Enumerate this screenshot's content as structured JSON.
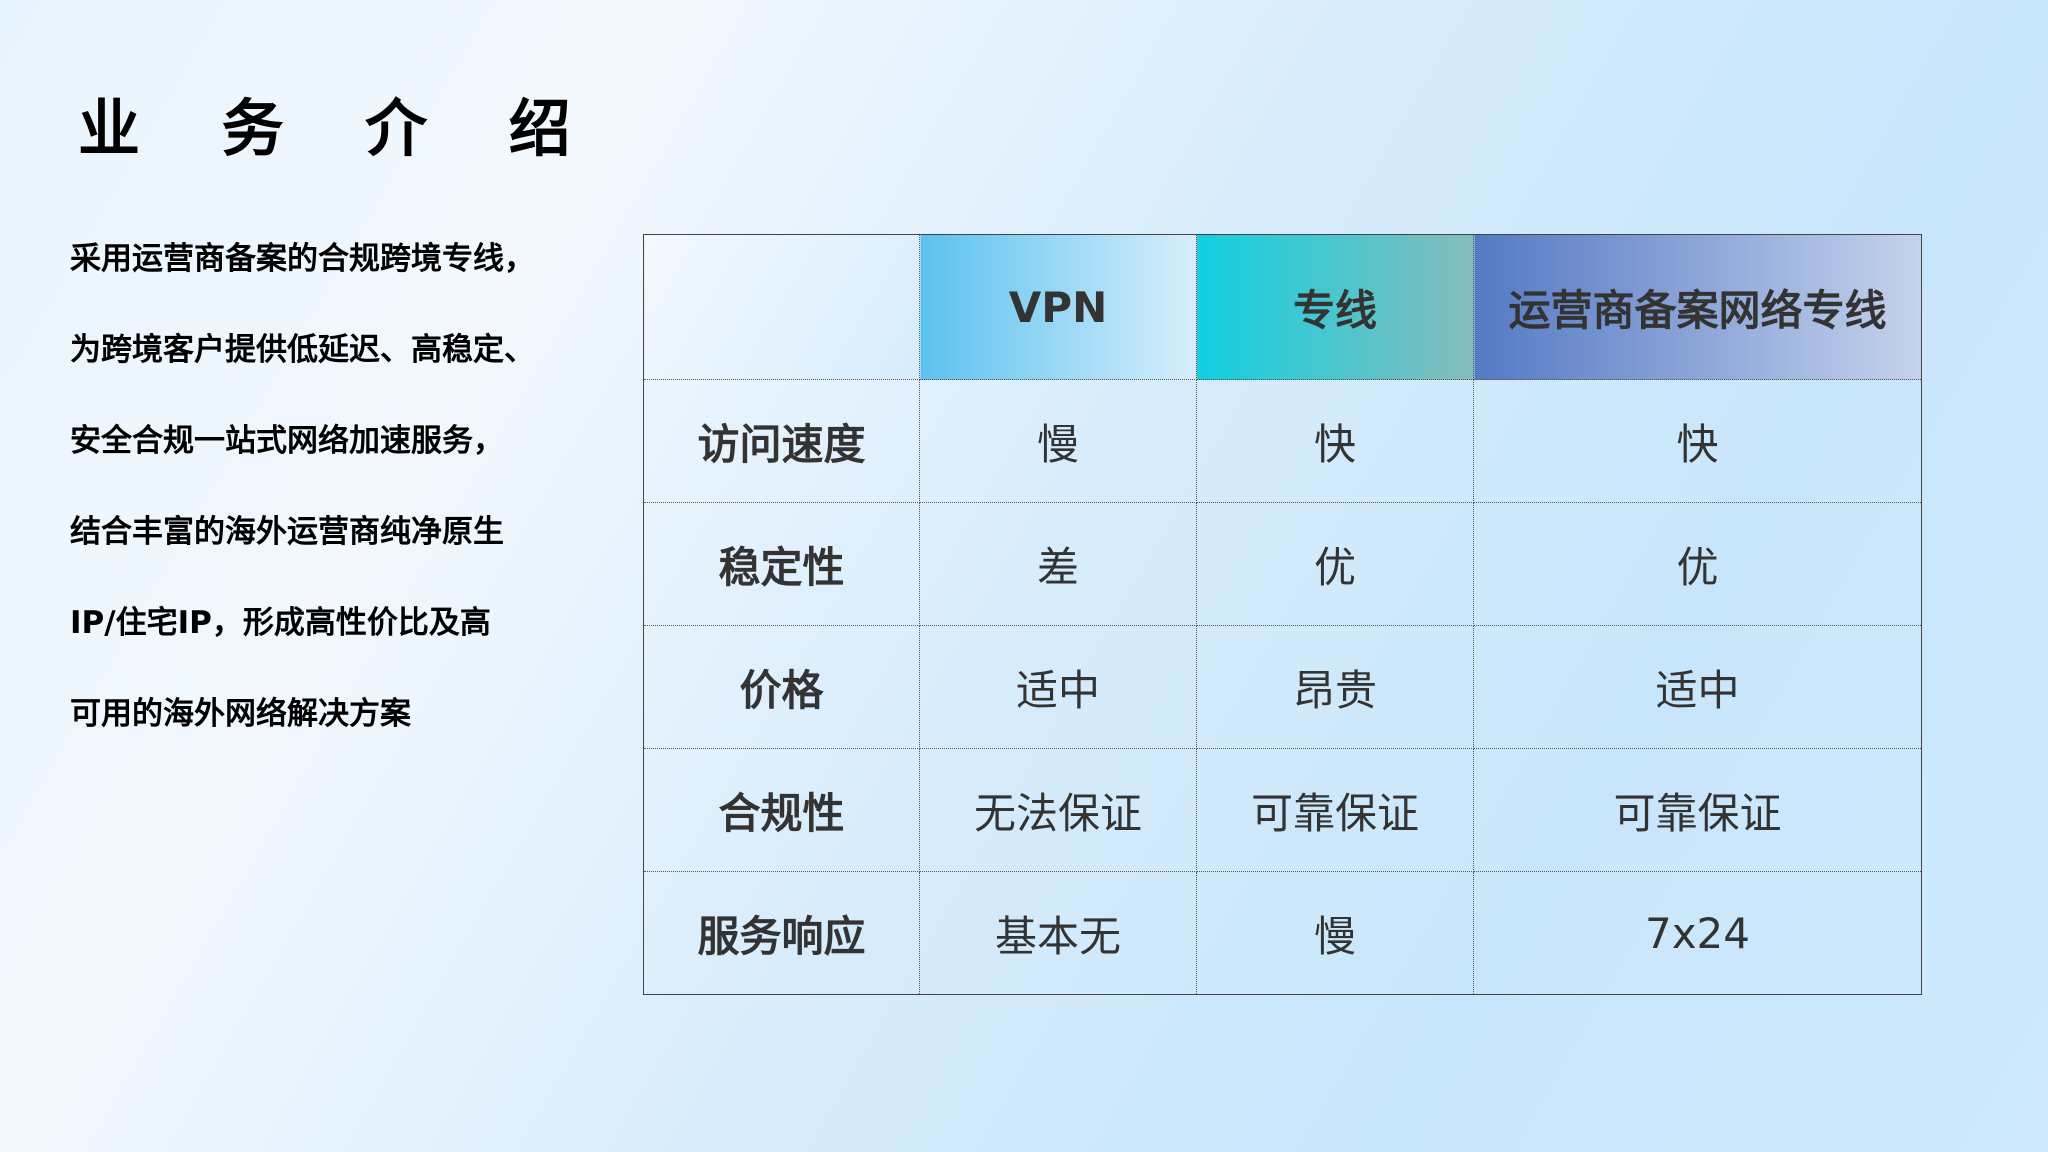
{
  "title": "业 务 介 绍",
  "description_lines": [
    "采用运营商备案的合规跨境专线，",
    "为跨境客户提供低延迟、高稳定、",
    "安全合规一站式网络加速服务，",
    "结合丰富的海外运营商纯净原生",
    "IP/住宅IP，形成高性价比及高",
    "可用的海外网络解决方案"
  ],
  "table": {
    "headers": [
      "",
      "VPN",
      "专线",
      "运营商备案网络专线"
    ],
    "header_colors": [
      "#5bc1ef",
      "#12cfe0",
      "#5479c4"
    ],
    "rows": [
      {
        "label": "访问速度",
        "cells": [
          "慢",
          "快",
          "快"
        ]
      },
      {
        "label": "稳定性",
        "cells": [
          "差",
          "优",
          "优"
        ]
      },
      {
        "label": "价格",
        "cells": [
          "适中",
          "昂贵",
          "适中"
        ]
      },
      {
        "label": "合规性",
        "cells": [
          "无法保证",
          "可靠保证",
          "可靠保证"
        ]
      },
      {
        "label": "服务响应",
        "cells": [
          "基本无",
          "慢",
          "7x24"
        ]
      }
    ]
  }
}
